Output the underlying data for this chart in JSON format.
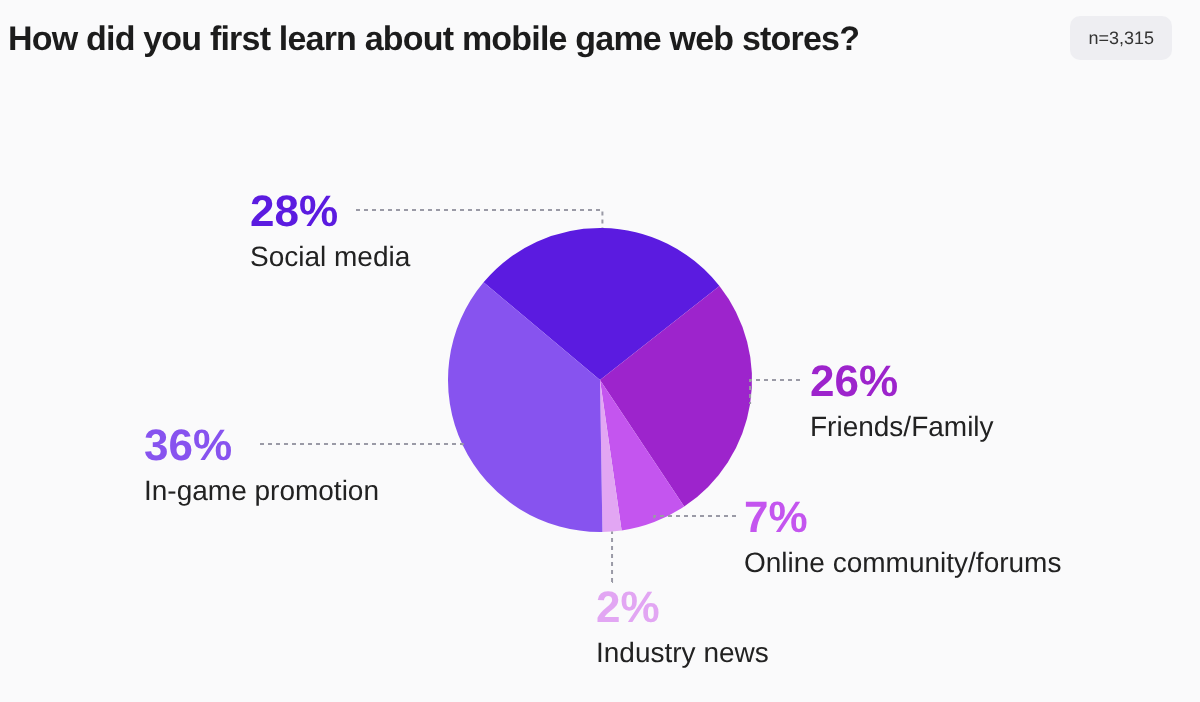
{
  "chart_data": {
    "type": "pie",
    "title": "How did you first learn about mobile game web stores?",
    "annotations": [
      "n=3,315"
    ],
    "categories": [
      "Social media",
      "Friends/Family",
      "Online community/forums",
      "Industry news",
      "In-game promotion"
    ],
    "values": [
      28,
      26,
      7,
      2,
      36
    ],
    "value_labels": [
      "28%",
      "26%",
      "7%",
      "2%",
      "36%"
    ],
    "colors": [
      "#5b1be0",
      "#9d24cc",
      "#c455ef",
      "#e2a6f3",
      "#8753ef"
    ]
  }
}
